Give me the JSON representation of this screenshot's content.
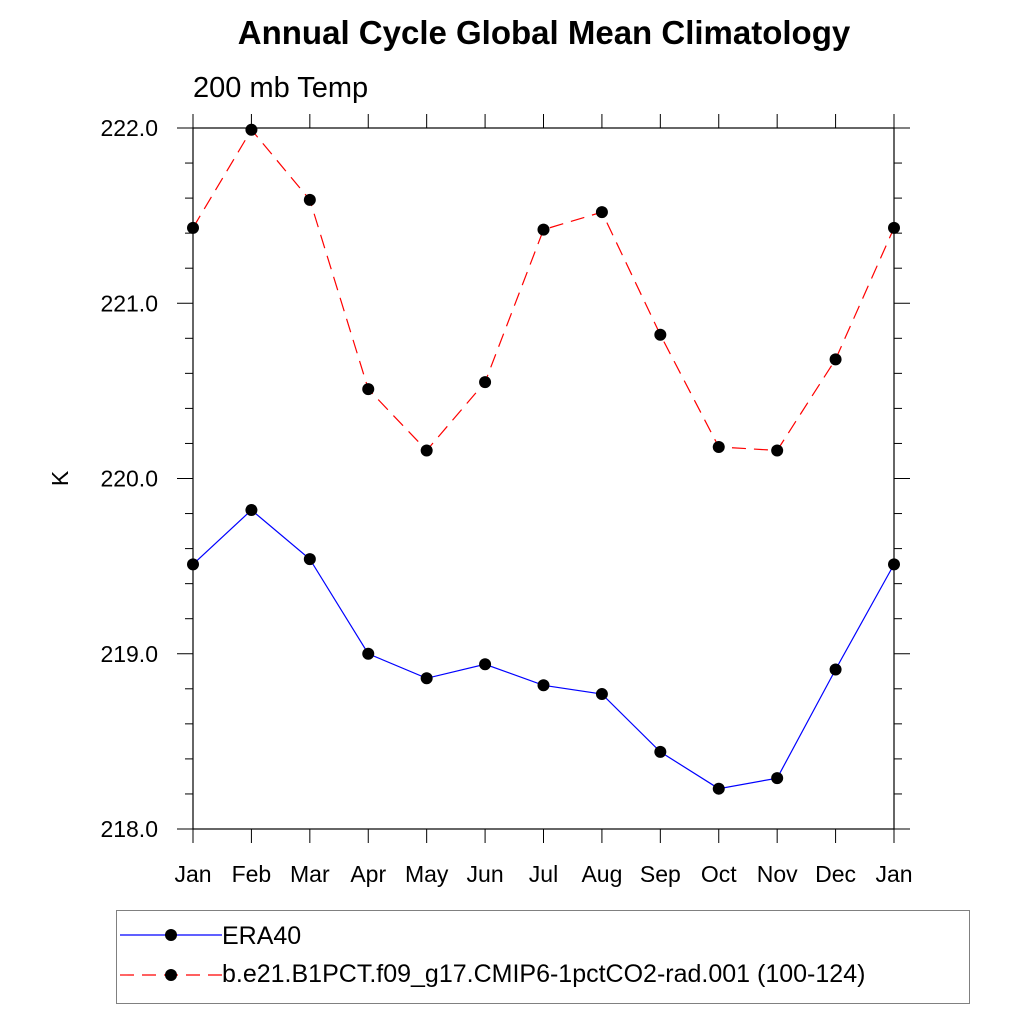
{
  "title": "Annual Cycle Global Mean Climatology",
  "subtitle": "200 mb Temp",
  "chart_data": {
    "type": "line",
    "ylabel": "K",
    "xlabel": "",
    "categories": [
      "Jan",
      "Feb",
      "Mar",
      "Apr",
      "May",
      "Jun",
      "Jul",
      "Aug",
      "Sep",
      "Oct",
      "Nov",
      "Dec",
      "Jan"
    ],
    "ylim": [
      218.0,
      222.0
    ],
    "yticks": [
      "218.0",
      "219.0",
      "220.0",
      "221.0",
      "222.0"
    ],
    "series": [
      {
        "name": "ERA40",
        "color": "#0000ff",
        "style": "solid",
        "values": [
          219.51,
          219.82,
          219.54,
          219.0,
          218.86,
          218.94,
          218.82,
          218.77,
          218.44,
          218.23,
          218.29,
          218.91,
          219.51
        ]
      },
      {
        "name": "b.e21.B1PCT.f09_g17.CMIP6-1pctCO2-rad.001 (100-124)",
        "color": "#ff0000",
        "style": "dashed",
        "values": [
          221.43,
          221.99,
          221.59,
          220.51,
          220.16,
          220.55,
          221.42,
          221.52,
          220.82,
          220.18,
          220.16,
          220.68,
          221.43
        ]
      }
    ],
    "legend_position": "bottom"
  }
}
